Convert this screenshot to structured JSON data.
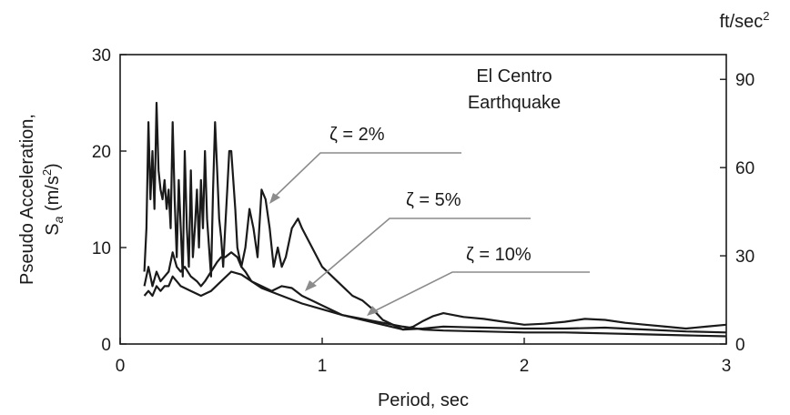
{
  "chart_data": {
    "type": "line",
    "xlabel": "Period, sec",
    "ylabel": "Pseudo Acceleration,",
    "ylabel_symbol": "S",
    "ylabel_subscript": "a",
    "ylabel_unit_open": " (m/s",
    "ylabel_unit_sup": "2",
    "ylabel_unit_close": ")",
    "y2_unit": "ft/sec",
    "y2_unit_sup": "2",
    "xlim": [
      0,
      3
    ],
    "ylim": [
      0,
      30
    ],
    "y2lim_ft_per_sec2": [
      0,
      98.425
    ],
    "x_ticks": [
      0,
      1,
      2,
      3
    ],
    "x_tick_labels": [
      "0",
      "1",
      "2",
      "3"
    ],
    "y_ticks": [
      0,
      10,
      20,
      30
    ],
    "y_tick_labels": [
      "0",
      "10",
      "20",
      "30"
    ],
    "y2_ticks": [
      0,
      30,
      60,
      90
    ],
    "y2_tick_labels": [
      "0",
      "30",
      "60",
      "90"
    ],
    "grid": false,
    "annotations": {
      "title_line1": "El Centro",
      "title_line2": "Earthquake",
      "zeta_2": "ζ = 2%",
      "zeta_5": "ζ = 5%",
      "zeta_10": "ζ = 10%"
    },
    "series": [
      {
        "label_key": "zeta_2",
        "x": [
          0.12,
          0.13,
          0.14,
          0.15,
          0.16,
          0.17,
          0.18,
          0.19,
          0.2,
          0.21,
          0.22,
          0.23,
          0.24,
          0.25,
          0.26,
          0.27,
          0.28,
          0.29,
          0.3,
          0.31,
          0.32,
          0.33,
          0.34,
          0.35,
          0.36,
          0.37,
          0.38,
          0.39,
          0.4,
          0.41,
          0.42,
          0.43,
          0.44,
          0.45,
          0.46,
          0.47,
          0.48,
          0.49,
          0.5,
          0.51,
          0.52,
          0.53,
          0.54,
          0.55,
          0.56,
          0.57,
          0.58,
          0.59,
          0.6,
          0.62,
          0.64,
          0.66,
          0.68,
          0.7,
          0.72,
          0.74,
          0.76,
          0.78,
          0.8,
          0.82,
          0.85,
          0.88,
          0.9,
          0.95,
          1.0,
          1.05,
          1.1,
          1.15,
          1.2,
          1.25,
          1.3,
          1.35,
          1.4,
          1.45,
          1.5,
          1.55,
          1.6,
          1.65,
          1.7,
          1.8,
          1.9,
          2.0,
          2.1,
          2.2,
          2.3,
          2.4,
          2.5,
          2.6,
          2.7,
          2.8,
          2.9,
          3.0
        ],
        "y": [
          7.5,
          12,
          23,
          15,
          20,
          14,
          25,
          18,
          16,
          15,
          17,
          14,
          16,
          12,
          23,
          15,
          9,
          17,
          12,
          7,
          20,
          12,
          8,
          18,
          9,
          12,
          16,
          10,
          17,
          12,
          20,
          13,
          10,
          7,
          16,
          23,
          18,
          13,
          11,
          8,
          12,
          16,
          20,
          20,
          17,
          14,
          10,
          9,
          8,
          10,
          14,
          12,
          9,
          16,
          15,
          12,
          8,
          10,
          8,
          9,
          12,
          13,
          12,
          10,
          8,
          7,
          6,
          5,
          4.5,
          3.6,
          2.5,
          2,
          1.5,
          1.8,
          2.4,
          2.9,
          3.2,
          3,
          2.8,
          2.6,
          2.3,
          2,
          2.1,
          2.3,
          2.6,
          2.5,
          2.2,
          2,
          1.8,
          1.6,
          1.8,
          2
        ]
      },
      {
        "label_key": "zeta_5",
        "x": [
          0.12,
          0.14,
          0.16,
          0.18,
          0.2,
          0.22,
          0.24,
          0.26,
          0.28,
          0.3,
          0.32,
          0.35,
          0.38,
          0.4,
          0.42,
          0.45,
          0.48,
          0.5,
          0.52,
          0.55,
          0.58,
          0.6,
          0.62,
          0.65,
          0.7,
          0.75,
          0.8,
          0.85,
          0.9,
          0.95,
          1.0,
          1.1,
          1.2,
          1.3,
          1.4,
          1.5,
          1.6,
          1.8,
          2.0,
          2.2,
          2.4,
          2.6,
          2.8,
          3.0
        ],
        "y": [
          6,
          8,
          6,
          7.5,
          6.5,
          7,
          7.5,
          9.5,
          8,
          7.5,
          8,
          7,
          6.5,
          6,
          6.5,
          7.5,
          8.5,
          9,
          9,
          9.5,
          9,
          8,
          7.5,
          6.5,
          6,
          5.5,
          6,
          5.8,
          5,
          4.5,
          4,
          3,
          2.5,
          2,
          1.5,
          1.6,
          1.8,
          1.7,
          1.6,
          1.6,
          1.7,
          1.5,
          1.3,
          1.2
        ]
      },
      {
        "label_key": "zeta_10",
        "x": [
          0.12,
          0.14,
          0.16,
          0.18,
          0.2,
          0.22,
          0.24,
          0.26,
          0.28,
          0.3,
          0.35,
          0.4,
          0.45,
          0.5,
          0.55,
          0.6,
          0.65,
          0.7,
          0.8,
          0.9,
          1.0,
          1.1,
          1.2,
          1.3,
          1.4,
          1.5,
          1.6,
          1.8,
          2.0,
          2.2,
          2.4,
          2.6,
          2.8,
          3.0
        ],
        "y": [
          5,
          5.5,
          5,
          6,
          5.5,
          6,
          6,
          7,
          6.5,
          6,
          5.5,
          5,
          5.5,
          6.5,
          7.5,
          7.2,
          6.5,
          5.8,
          5,
          4.2,
          3.6,
          3,
          2.6,
          2.2,
          1.8,
          1.5,
          1.4,
          1.3,
          1.2,
          1.2,
          1.1,
          1,
          0.9,
          0.8
        ]
      }
    ]
  }
}
